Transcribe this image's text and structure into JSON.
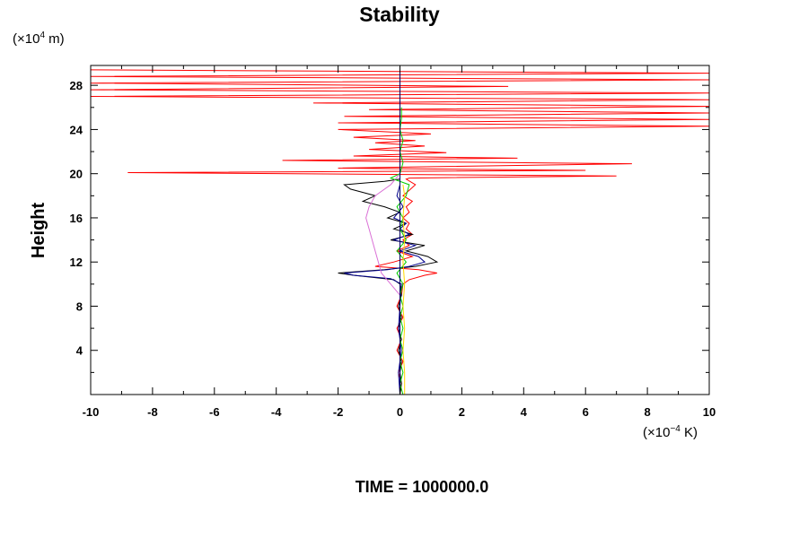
{
  "chart_data": {
    "type": "line",
    "title": "Stability",
    "ylabel": "Height",
    "xlabel": "",
    "y_unit": {
      "prefix": "(×10",
      "exp": "4",
      "suffix": " m)"
    },
    "x_unit": {
      "prefix": "(×10",
      "exp": "−4",
      "suffix": " K)"
    },
    "footer": "TIME = 1000000.0",
    "xlim": [
      -10,
      10
    ],
    "ylim": [
      0,
      29.8
    ],
    "x_ticks": [
      -10,
      -8,
      -6,
      -4,
      -2,
      0,
      2,
      4,
      6,
      8,
      10
    ],
    "x_tick_labels": [
      "-10",
      "-8",
      "-6",
      "-4",
      "-2",
      "0",
      "2",
      "4",
      "6",
      "8",
      "10"
    ],
    "y_ticks": [
      4,
      8,
      12,
      16,
      20,
      24,
      28
    ],
    "y_tick_labels": [
      "4",
      "8",
      "12",
      "16",
      "20",
      "24",
      "28"
    ],
    "x_minor_step": 1,
    "y_minor_step": 2,
    "grid": false,
    "series": [
      {
        "color": "#ff0000",
        "points": [
          [
            0.0,
            0.0
          ],
          [
            0.05,
            1
          ],
          [
            -0.05,
            2
          ],
          [
            0.1,
            3
          ],
          [
            -0.1,
            4
          ],
          [
            0.05,
            5
          ],
          [
            -0.1,
            6
          ],
          [
            0.1,
            7
          ],
          [
            -0.1,
            8
          ],
          [
            0.05,
            9
          ],
          [
            0.1,
            10
          ],
          [
            0.3,
            10.4
          ],
          [
            0.8,
            10.8
          ],
          [
            1.2,
            11.0
          ],
          [
            0.6,
            11.3
          ],
          [
            -0.8,
            11.6
          ],
          [
            -0.2,
            12.0
          ],
          [
            0.4,
            12.5
          ],
          [
            -0.1,
            13
          ],
          [
            0.3,
            13.5
          ],
          [
            0.1,
            14
          ],
          [
            0.4,
            14.5
          ],
          [
            0.2,
            15
          ],
          [
            0.3,
            15.5
          ],
          [
            0.1,
            16
          ],
          [
            0.3,
            16.5
          ],
          [
            0.2,
            17
          ],
          [
            0.4,
            17.5
          ],
          [
            0.1,
            18
          ],
          [
            0.3,
            18.5
          ],
          [
            0.5,
            19.0
          ],
          [
            0.2,
            19.5
          ],
          [
            0.3,
            19.6
          ],
          [
            7.0,
            19.8
          ],
          [
            -8.8,
            20.1
          ],
          [
            6.0,
            20.3
          ],
          [
            -2.0,
            20.5
          ],
          [
            7.5,
            20.9
          ],
          [
            -3.8,
            21.2
          ],
          [
            3.8,
            21.4
          ],
          [
            -1.5,
            21.6
          ],
          [
            1.5,
            21.9
          ],
          [
            -1.0,
            22.2
          ],
          [
            0.8,
            22.5
          ],
          [
            -0.8,
            22.8
          ],
          [
            0.5,
            23.0
          ],
          [
            -1.5,
            23.3
          ],
          [
            1.0,
            23.6
          ],
          [
            -2.0,
            24.0
          ],
          [
            10,
            24.3
          ],
          [
            -2.0,
            24.6
          ],
          [
            10,
            24.9
          ],
          [
            -1.8,
            25.2
          ],
          [
            10,
            25.5
          ],
          [
            -1.0,
            25.8
          ],
          [
            10,
            26.1
          ],
          [
            -2.8,
            26.4
          ],
          [
            10,
            26.7
          ],
          [
            -10,
            27.0
          ],
          [
            10,
            27.3
          ],
          [
            -10,
            27.6
          ],
          [
            3.5,
            27.9
          ],
          [
            -10,
            28.2
          ],
          [
            10,
            28.5
          ],
          [
            -10,
            28.8
          ],
          [
            10,
            29.1
          ],
          [
            -10,
            29.4
          ]
        ]
      },
      {
        "color": "#000000",
        "points": [
          [
            0.0,
            0
          ],
          [
            0.05,
            1
          ],
          [
            0.0,
            2
          ],
          [
            0.05,
            3
          ],
          [
            -0.05,
            4
          ],
          [
            0.05,
            5
          ],
          [
            -0.05,
            6
          ],
          [
            0.05,
            7
          ],
          [
            -0.05,
            8
          ],
          [
            0.05,
            9
          ],
          [
            0.0,
            10
          ],
          [
            -0.2,
            10.4
          ],
          [
            -1.5,
            10.8
          ],
          [
            -2.0,
            11.0
          ],
          [
            -0.5,
            11.3
          ],
          [
            0.5,
            11.6
          ],
          [
            1.2,
            12.0
          ],
          [
            0.9,
            12.5
          ],
          [
            0.2,
            13
          ],
          [
            0.8,
            13.5
          ],
          [
            -0.3,
            14
          ],
          [
            0.4,
            14.5
          ],
          [
            -0.2,
            15
          ],
          [
            0.2,
            15.5
          ],
          [
            -0.4,
            16
          ],
          [
            0.0,
            16.5
          ],
          [
            -0.5,
            17
          ],
          [
            -1.2,
            17.5
          ],
          [
            -0.8,
            18
          ],
          [
            -1.6,
            18.6
          ],
          [
            -1.8,
            19.0
          ],
          [
            -0.5,
            19.3
          ],
          [
            0.0,
            19.5
          ],
          [
            0.0,
            29.8
          ]
        ]
      },
      {
        "color": "#00008b",
        "points": [
          [
            0.0,
            0
          ],
          [
            -0.05,
            2
          ],
          [
            0.05,
            4
          ],
          [
            -0.05,
            6
          ],
          [
            0.0,
            8
          ],
          [
            0.05,
            10
          ],
          [
            -0.3,
            10.5
          ],
          [
            -1.5,
            10.8
          ],
          [
            -1.8,
            11.0
          ],
          [
            -0.4,
            11.3
          ],
          [
            0.3,
            11.6
          ],
          [
            0.8,
            12.0
          ],
          [
            0.6,
            12.5
          ],
          [
            0.0,
            13
          ],
          [
            0.5,
            13.5
          ],
          [
            -0.2,
            14
          ],
          [
            0.3,
            14.5
          ],
          [
            0.0,
            15
          ],
          [
            0.2,
            15.5
          ],
          [
            -0.2,
            16
          ],
          [
            0.1,
            17
          ],
          [
            -0.1,
            18
          ],
          [
            0.0,
            19
          ],
          [
            0.0,
            20
          ]
        ]
      },
      {
        "color": "#da70d6",
        "points": [
          [
            0.0,
            9
          ],
          [
            -0.3,
            10
          ],
          [
            -0.6,
            11
          ],
          [
            -0.7,
            12
          ],
          [
            -0.8,
            13
          ],
          [
            -0.9,
            14
          ],
          [
            -1.0,
            15
          ],
          [
            -1.1,
            16
          ],
          [
            -1.0,
            17
          ],
          [
            -0.8,
            18
          ],
          [
            -0.3,
            19
          ],
          [
            0.0,
            20
          ]
        ]
      },
      {
        "color": "#00cc00",
        "points": [
          [
            0.1,
            0
          ],
          [
            0.0,
            1
          ],
          [
            0.1,
            2
          ],
          [
            0.0,
            3
          ],
          [
            0.1,
            4
          ],
          [
            0.0,
            5
          ],
          [
            0.1,
            6
          ],
          [
            0.0,
            7
          ],
          [
            0.1,
            8
          ],
          [
            0.0,
            9
          ],
          [
            0.1,
            10
          ],
          [
            -0.1,
            11
          ],
          [
            0.2,
            12
          ],
          [
            -0.1,
            13
          ],
          [
            0.2,
            14
          ],
          [
            0.0,
            15
          ],
          [
            0.1,
            16
          ],
          [
            -0.1,
            17
          ],
          [
            0.2,
            18
          ],
          [
            0.3,
            19
          ],
          [
            -0.3,
            19.6
          ],
          [
            0.0,
            20
          ],
          [
            0.1,
            21
          ],
          [
            0.0,
            22
          ],
          [
            0.1,
            23
          ],
          [
            0.0,
            24
          ],
          [
            0.05,
            25
          ],
          [
            0.05,
            26
          ]
        ]
      },
      {
        "color": "#ffd700",
        "points": [
          [
            0.15,
            0
          ],
          [
            0.15,
            2
          ],
          [
            0.1,
            4
          ],
          [
            0.15,
            6
          ],
          [
            0.1,
            8
          ],
          [
            0.15,
            10
          ],
          [
            0.1,
            12
          ],
          [
            0.15,
            14
          ],
          [
            0.1,
            16
          ],
          [
            0.15,
            18
          ],
          [
            0.1,
            19
          ]
        ]
      }
    ]
  }
}
